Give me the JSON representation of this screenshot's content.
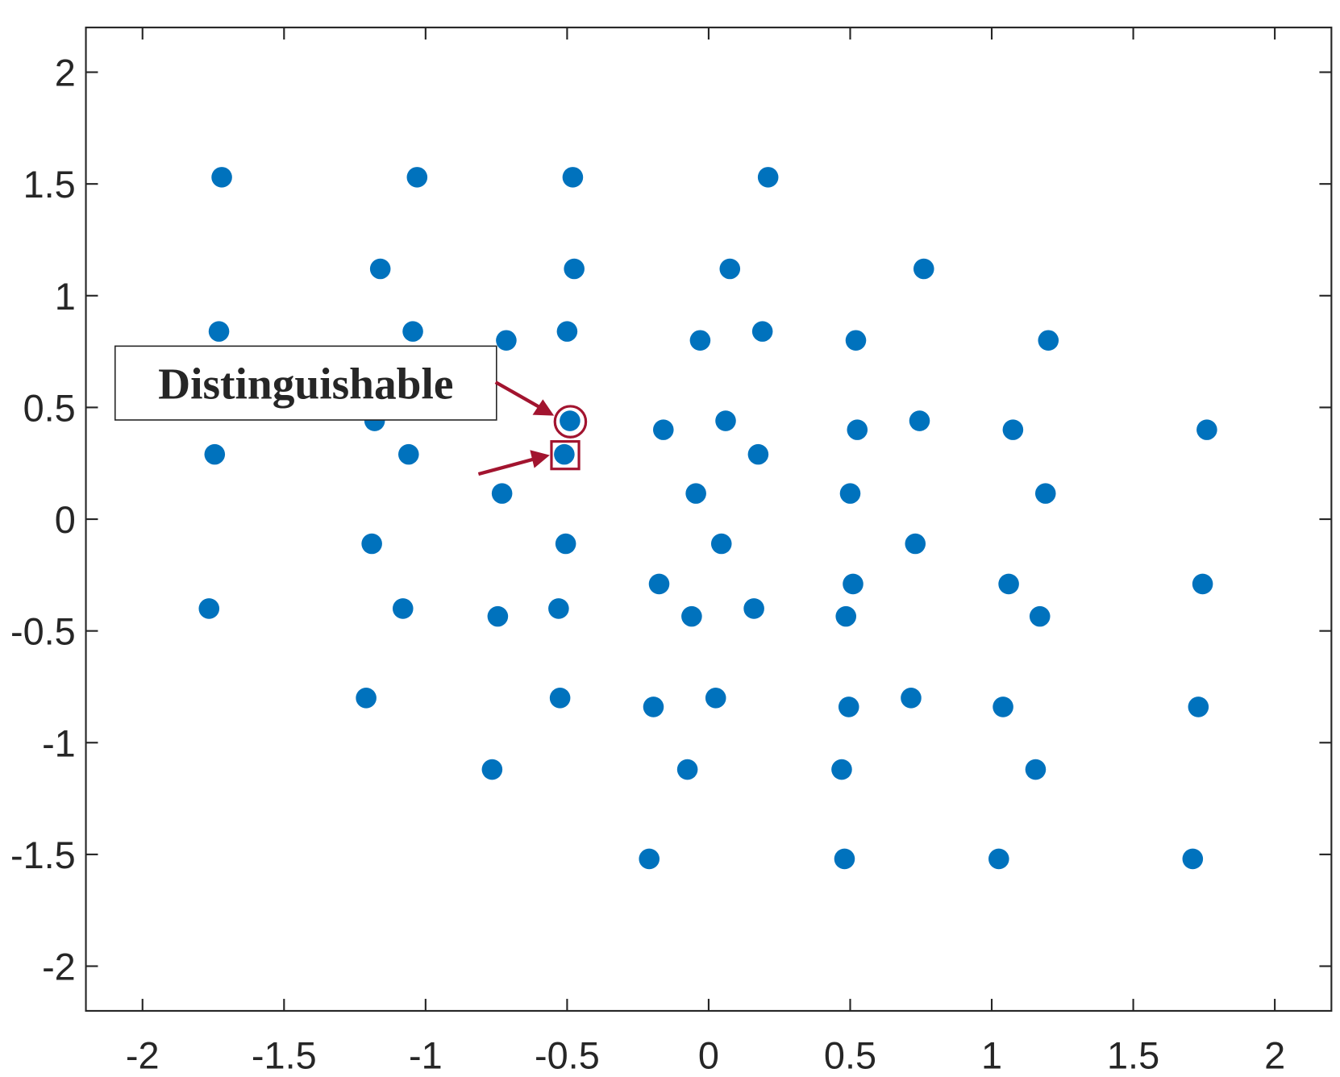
{
  "chart_data": {
    "type": "scatter",
    "annotation": "Distinguishable",
    "color": "#0072bd",
    "xlim": [
      -2.2,
      2.2
    ],
    "ylim": [
      -2.2,
      2.2
    ],
    "xticks": [
      -2,
      -1.5,
      -1,
      -0.5,
      0,
      0.5,
      1,
      1.5,
      2
    ],
    "yticks": [
      -2,
      -1.5,
      -1,
      -0.5,
      0,
      0.5,
      1,
      1.5,
      2
    ],
    "x": [
      -1.72,
      -1.03,
      -0.48,
      0.21,
      -1.16,
      -0.475,
      0.075,
      0.76,
      -1.73,
      -1.045,
      -0.5,
      0.19,
      -0.715,
      -0.03,
      0.52,
      1.2,
      -1.18,
      -0.49,
      0.06,
      0.745,
      -0.16,
      0.525,
      1.075,
      1.76,
      -1.745,
      -1.06,
      -0.51,
      0.175,
      -0.73,
      -0.045,
      0.5,
      1.19,
      -1.19,
      -0.505,
      0.045,
      0.73,
      -0.175,
      0.51,
      1.06,
      1.745,
      -1.765,
      -1.08,
      -0.53,
      0.16,
      -0.745,
      -0.06,
      0.485,
      1.17,
      -1.21,
      -0.525,
      0.025,
      0.715,
      -0.195,
      0.495,
      1.04,
      1.73,
      -0.765,
      -0.075,
      0.47,
      1.155,
      -0.21,
      0.48,
      1.025,
      1.71
    ],
    "values": [
      1.53,
      1.53,
      1.53,
      1.53,
      1.12,
      1.12,
      1.12,
      1.12,
      0.84,
      0.84,
      0.84,
      0.84,
      0.8,
      0.8,
      0.8,
      0.8,
      0.44,
      0.44,
      0.44,
      0.44,
      0.4,
      0.4,
      0.4,
      0.4,
      0.29,
      0.29,
      0.29,
      0.29,
      0.115,
      0.115,
      0.115,
      0.115,
      -0.11,
      -0.11,
      -0.11,
      -0.11,
      -0.29,
      -0.29,
      -0.29,
      -0.29,
      -0.4,
      -0.4,
      -0.4,
      -0.4,
      -0.435,
      -0.435,
      -0.435,
      -0.435,
      -0.8,
      -0.8,
      -0.8,
      -0.8,
      -0.84,
      -0.84,
      -0.84,
      -0.84,
      -1.12,
      -1.12,
      -1.12,
      -1.12,
      -1.52,
      -1.52,
      -1.52,
      -1.52
    ]
  }
}
